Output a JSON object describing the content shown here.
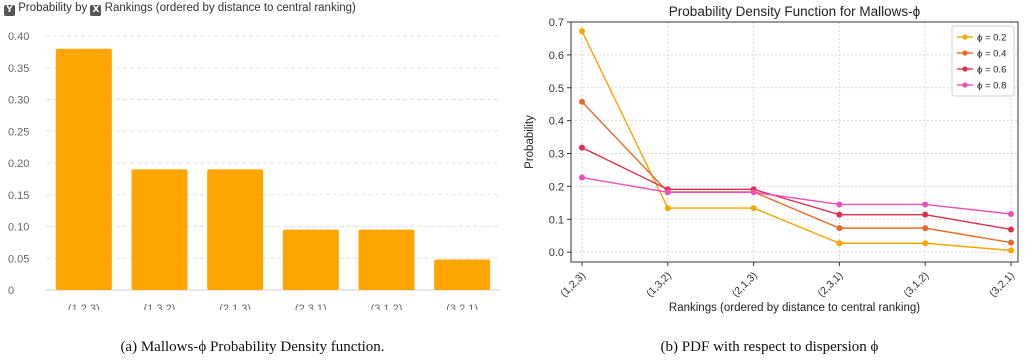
{
  "panels": {
    "a": {
      "header": {
        "y_chip": "Y",
        "y_label": "Probability by",
        "x_chip": "X",
        "x_label": "Rankings (ordered by distance to central ranking)"
      },
      "caption": {
        "letter": "(a)",
        "text": "Mallows-ϕ Probability Density function."
      }
    },
    "b": {
      "caption": {
        "letter": "(b)",
        "text": "PDF with respect to dispersion ϕ"
      }
    }
  },
  "chart_data": [
    {
      "type": "bar",
      "title": "",
      "categories": [
        "(1,2,3)",
        "(1,3,2)",
        "(2,1,3)",
        "(2,3,1)",
        "(3,1,2)",
        "(3,2,1)"
      ],
      "values": [
        0.38,
        0.19,
        0.19,
        0.095,
        0.095,
        0.048
      ],
      "ylim": [
        0,
        0.4
      ],
      "yticks": [
        "0",
        "0.05",
        "0.10",
        "0.15",
        "0.20",
        "0.25",
        "0.30",
        "0.35",
        "0.40"
      ],
      "grid": true,
      "bar_color": "#ffa500"
    },
    {
      "type": "line",
      "title": "Probability Density Function for Mallows-ϕ",
      "xlabel": "Rankings (ordered by distance to central ranking)",
      "ylabel": "Probability",
      "categories": [
        "(1,2,3)",
        "(1,3,2)",
        "(2,1,3)",
        "(2,3,1)",
        "(3,1,2)",
        "(3,2,1)"
      ],
      "ylim": [
        -0.03,
        0.7
      ],
      "yticks": [
        "0.0",
        "0.1",
        "0.2",
        "0.3",
        "0.4",
        "0.5",
        "0.6",
        "0.7"
      ],
      "grid": true,
      "legend_position": "top-right",
      "series": [
        {
          "name": "ϕ = 0.2",
          "color": "#f5a700",
          "values": [
            0.672,
            0.134,
            0.134,
            0.027,
            0.027,
            0.005
          ]
        },
        {
          "name": "ϕ = 0.4",
          "color": "#e86a2a",
          "values": [
            0.457,
            0.183,
            0.183,
            0.073,
            0.073,
            0.029
          ]
        },
        {
          "name": "ϕ = 0.6",
          "color": "#e02e4c",
          "values": [
            0.318,
            0.191,
            0.191,
            0.114,
            0.114,
            0.069
          ]
        },
        {
          "name": "ϕ = 0.8",
          "color": "#ee4fb9",
          "values": [
            0.227,
            0.182,
            0.182,
            0.145,
            0.145,
            0.116
          ]
        }
      ]
    }
  ]
}
